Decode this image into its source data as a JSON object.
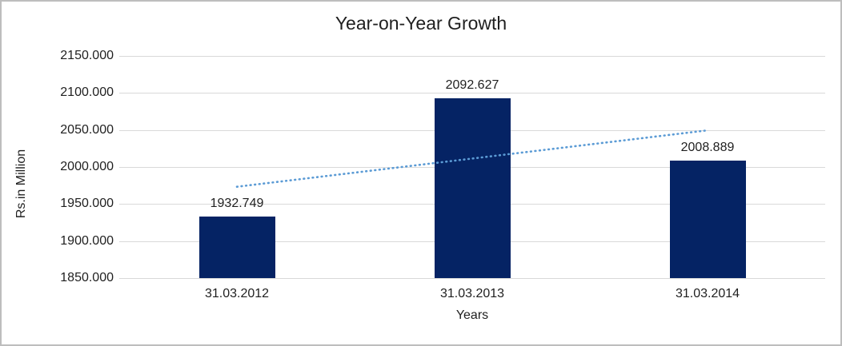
{
  "chart_data": {
    "type": "bar",
    "title": "Year-on-Year Growth",
    "xlabel": "Years",
    "ylabel": "Rs.in Million",
    "categories": [
      "31.03.2012",
      "31.03.2013",
      "31.03.2014"
    ],
    "values": [
      1932.749,
      2092.627,
      2008.889
    ],
    "data_labels": [
      "1932.749",
      "2092.627",
      "2008.889"
    ],
    "ytick_labels": [
      "2150.000",
      "2100.000",
      "2050.000",
      "2000.000",
      "1950.000",
      "1900.000",
      "1850.000"
    ],
    "ylim": [
      1850,
      2150
    ],
    "grid": true,
    "legend_position": "none",
    "bar_color": "#052364",
    "gridline_color": "#d9d9d9",
    "trendline": {
      "kind": "linear",
      "style": "dotted",
      "color": "#5b9bd5",
      "start_value": 1973.3,
      "end_value": 2049.5
    }
  }
}
